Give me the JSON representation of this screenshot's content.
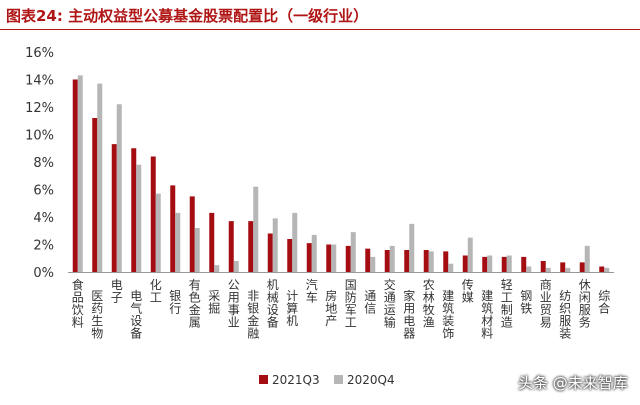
{
  "header": {
    "title": "图表24:  主动权益型公募基金股票配置比（一级行业）"
  },
  "watermark": {
    "text": "头条 @未来智库"
  },
  "colors": {
    "title": "#b01515",
    "series_2021Q3": "#a40e13",
    "series_2020Q4": "#b6b6b6"
  },
  "chart_data": {
    "type": "bar",
    "categories": [
      "食品饮料",
      "医药生物",
      "电子",
      "电气设备",
      "化工",
      "银行",
      "有色金属",
      "采掘",
      "公用事业",
      "非银金融",
      "机械设备",
      "计算机",
      "汽车",
      "房地产",
      "国防军工",
      "通信",
      "交通运输",
      "家用电器",
      "农林牧渔",
      "建筑装饰",
      "传媒",
      "建筑材料",
      "轻工制造",
      "钢铁",
      "商业贸易",
      "纺织服装",
      "休闲服务",
      "综合"
    ],
    "series": [
      {
        "name": "2021Q3",
        "values": [
          14.0,
          11.2,
          9.3,
          9.0,
          8.4,
          6.3,
          5.5,
          4.3,
          3.7,
          3.7,
          2.8,
          2.4,
          2.1,
          2.0,
          1.9,
          1.7,
          1.6,
          1.6,
          1.6,
          1.5,
          1.2,
          1.1,
          1.1,
          1.1,
          0.8,
          0.7,
          0.7,
          0.4
        ]
      },
      {
        "name": "2020Q4",
        "values": [
          14.3,
          13.7,
          12.2,
          7.8,
          5.7,
          4.3,
          3.2,
          0.5,
          0.8,
          6.2,
          3.9,
          4.3,
          2.7,
          2.0,
          2.9,
          1.1,
          1.9,
          3.5,
          1.5,
          0.6,
          2.5,
          1.2,
          1.2,
          0.4,
          0.3,
          0.3,
          1.9,
          0.3
        ]
      }
    ],
    "ylim": [
      0,
      16
    ],
    "yticks": [
      "0%",
      "2%",
      "4%",
      "6%",
      "8%",
      "10%",
      "12%",
      "14%",
      "16%"
    ],
    "grid": false,
    "legend": "bottom"
  }
}
